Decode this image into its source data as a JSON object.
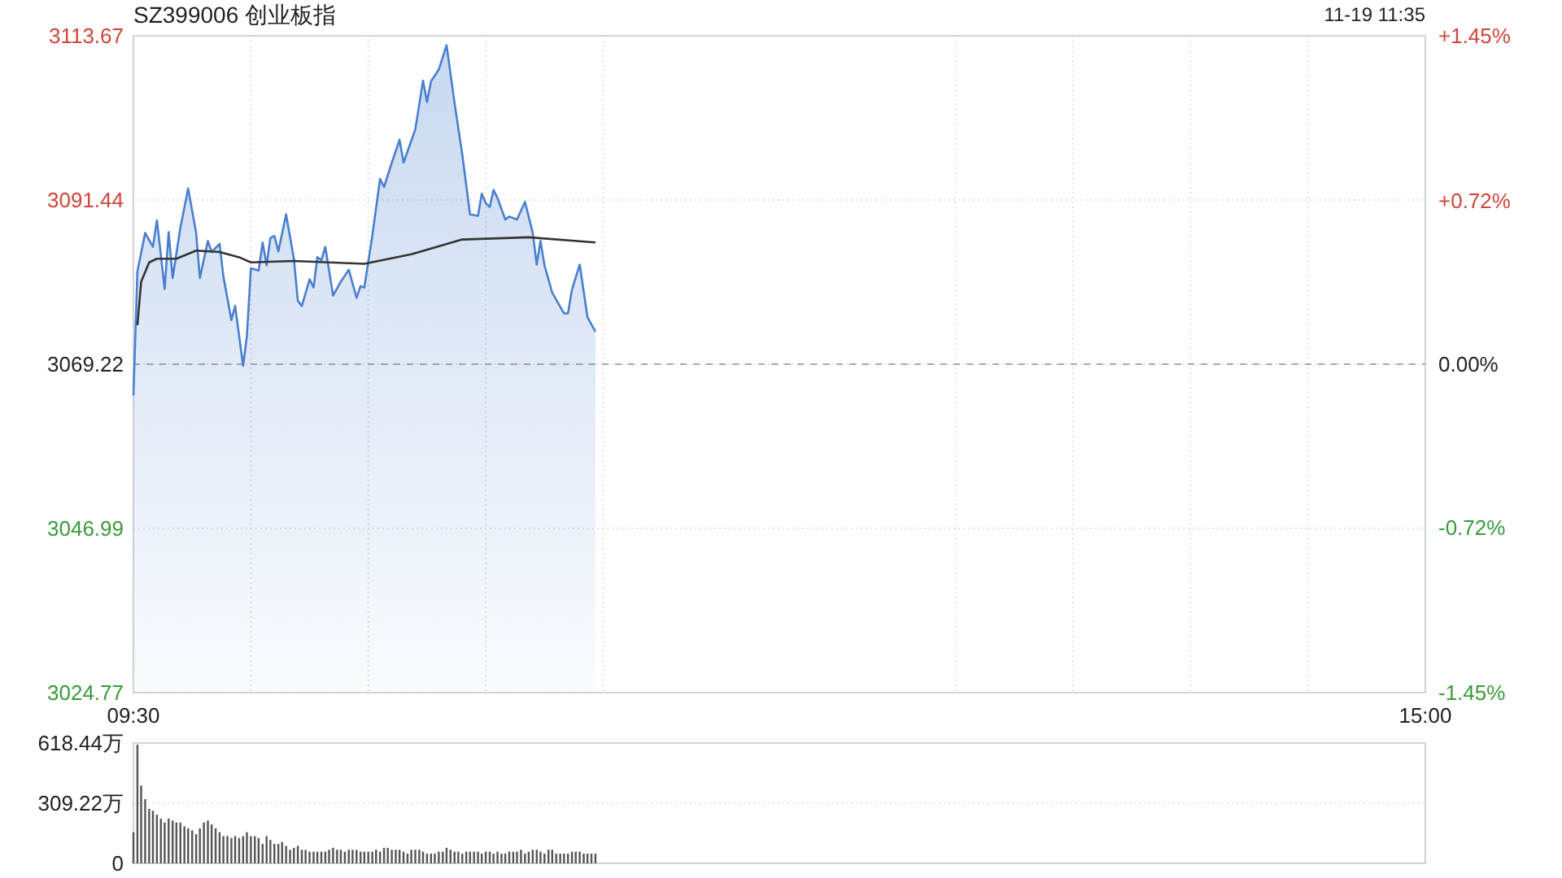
{
  "chart_data": [
    {
      "type": "area",
      "title": "SZ399006 创业板指",
      "annotations": [
        "11-19 11:35"
      ],
      "xlim": [
        9.5,
        15
      ],
      "xticks": [
        {
          "value": 9.5,
          "label": "09:30"
        },
        {
          "value": 10,
          "label": null
        },
        {
          "value": 10.5,
          "label": null
        },
        {
          "value": 11,
          "label": null
        },
        {
          "value": 11.5,
          "label": null
        },
        {
          "value": 13,
          "label": null
        },
        {
          "value": 13.5,
          "label": null
        },
        {
          "value": 14,
          "label": null
        },
        {
          "value": 14.5,
          "label": null
        },
        {
          "value": 15,
          "label": "15:00"
        }
      ],
      "ylim": [
        3024.77,
        3113.67
      ],
      "yticks": [
        3024.77,
        3046.99,
        3069.22,
        3091.44,
        3113.67
      ],
      "y2lim": [
        -1.45,
        1.45
      ],
      "y2ticks": [
        {
          "value": 1.45,
          "label": "+1.45%"
        },
        {
          "value": 0.72,
          "label": "+0.72%"
        },
        {
          "value": 0,
          "label": "0.00%"
        },
        {
          "value": -0.72,
          "label": "-0.72%"
        },
        {
          "value": -1.45,
          "label": "-1.45%"
        }
      ],
      "grid": true,
      "ref_lines": [
        {
          "axis": "y",
          "value": 3069.22,
          "line_style": "dashed",
          "color": "#aaaaaa"
        }
      ],
      "series": [
        {
          "type": "area",
          "color": "#4a7fcf",
          "x": [
            9.5,
            9.517,
            9.55,
            9.583,
            9.6,
            9.633,
            9.65,
            9.667,
            9.7,
            9.733,
            9.767,
            9.783,
            9.817,
            9.833,
            9.867,
            9.883,
            9.917,
            9.933,
            9.967,
            9.983,
            10,
            10.033,
            10.05,
            10.067,
            10.083,
            10.1,
            10.117,
            10.15,
            10.183,
            10.2,
            10.217,
            10.25,
            10.267,
            10.283,
            10.3,
            10.317,
            10.35,
            10.383,
            10.417,
            10.45,
            10.467,
            10.483,
            10.517,
            10.55,
            10.567,
            10.6,
            10.633,
            10.65,
            10.7,
            10.733,
            10.75,
            10.767,
            10.8,
            10.833,
            10.867,
            10.9,
            10.933,
            10.967,
            10.983,
            11,
            11.017,
            11.033,
            11.05,
            11.083,
            11.1,
            11.133,
            11.167,
            11.2,
            11.217,
            11.233,
            11.25,
            11.283,
            11.333,
            11.35,
            11.367,
            11.4,
            11.433,
            11.467
          ],
          "values": [
            3065.0,
            3081.8,
            3087.0,
            3085.1,
            3088.7,
            3079.4,
            3087.1,
            3080.9,
            3087.7,
            3093.0,
            3087.0,
            3080.9,
            3085.9,
            3084.4,
            3085.5,
            3081.1,
            3075.2,
            3077.1,
            3069.0,
            3073.0,
            3082.2,
            3081.9,
            3085.7,
            3082.6,
            3086.3,
            3086.6,
            3084.5,
            3089.5,
            3083.5,
            3077.8,
            3077.1,
            3080.7,
            3079.6,
            3083.7,
            3083.3,
            3085.1,
            3078.5,
            3080.4,
            3082.0,
            3078.2,
            3079.8,
            3079.6,
            3086.6,
            3094.3,
            3093.2,
            3096.5,
            3099.6,
            3096.5,
            3101.0,
            3107.6,
            3104.7,
            3107.5,
            3109.1,
            3112.4,
            3104.6,
            3097.6,
            3089.5,
            3089.3,
            3092.3,
            3091.0,
            3090.5,
            3092.8,
            3091.7,
            3088.8,
            3089.2,
            3088.8,
            3091.2,
            3087.0,
            3082.7,
            3085.9,
            3082.6,
            3078.9,
            3076.1,
            3076.1,
            3079.3,
            3082.7,
            3075.6,
            3073.6
          ]
        },
        {
          "type": "line",
          "color": "#333333",
          "x": [
            9.517,
            9.533,
            9.567,
            9.6,
            9.683,
            9.767,
            9.867,
            9.95,
            10,
            10.183,
            10.483,
            10.683,
            10.9,
            11.183,
            11.467
          ],
          "values": [
            3074.5,
            3080.4,
            3083.0,
            3083.5,
            3083.5,
            3084.6,
            3084.4,
            3083.7,
            3083.0,
            3083.2,
            3082.8,
            3084.1,
            3086.1,
            3086.4,
            3085.7
          ]
        }
      ]
    },
    {
      "type": "bar",
      "tick_labels": "y",
      "xlim": [
        9.5,
        15
      ],
      "ylim": [
        0,
        618.44
      ],
      "yticks": [
        0,
        {
          "value": 309.22,
          "label": "309.22万"
        },
        {
          "value": 618.44,
          "label": "618.44万"
        }
      ],
      "grid": "y",
      "series": [
        {
          "color": "#555555",
          "x": [
            9.5,
            9.517,
            9.533,
            9.55,
            9.567,
            9.583,
            9.6,
            9.617,
            9.633,
            9.65,
            9.667,
            9.683,
            9.7,
            9.717,
            9.733,
            9.75,
            9.767,
            9.783,
            9.8,
            9.817,
            9.833,
            9.85,
            9.867,
            9.883,
            9.9,
            9.917,
            9.933,
            9.95,
            9.967,
            9.983,
            10,
            10.017,
            10.033,
            10.05,
            10.067,
            10.083,
            10.1,
            10.117,
            10.133,
            10.15,
            10.167,
            10.183,
            10.2,
            10.217,
            10.233,
            10.25,
            10.267,
            10.283,
            10.3,
            10.317,
            10.333,
            10.35,
            10.367,
            10.383,
            10.4,
            10.417,
            10.433,
            10.45,
            10.467,
            10.483,
            10.5,
            10.517,
            10.533,
            10.55,
            10.567,
            10.583,
            10.6,
            10.617,
            10.633,
            10.65,
            10.667,
            10.683,
            10.7,
            10.717,
            10.733,
            10.75,
            10.767,
            10.783,
            10.8,
            10.817,
            10.833,
            10.85,
            10.867,
            10.883,
            10.9,
            10.917,
            10.933,
            10.95,
            10.967,
            10.983,
            11,
            11.017,
            11.033,
            11.05,
            11.067,
            11.083,
            11.1,
            11.117,
            11.133,
            11.15,
            11.167,
            11.183,
            11.2,
            11.217,
            11.233,
            11.25,
            11.267,
            11.283,
            11.3,
            11.317,
            11.333,
            11.35,
            11.367,
            11.383,
            11.4,
            11.417,
            11.433,
            11.45,
            11.467
          ],
          "values": [
            160,
            610,
            400,
            330,
            280,
            270,
            250,
            230,
            210,
            230,
            220,
            210,
            210,
            190,
            180,
            170,
            150,
            180,
            210,
            220,
            200,
            180,
            160,
            140,
            140,
            130,
            140,
            130,
            140,
            160,
            140,
            140,
            130,
            100,
            140,
            120,
            100,
            100,
            110,
            90,
            70,
            80,
            90,
            70,
            70,
            60,
            60,
            60,
            60,
            60,
            70,
            80,
            70,
            70,
            60,
            70,
            70,
            70,
            60,
            60,
            60,
            60,
            70,
            60,
            80,
            80,
            70,
            70,
            70,
            60,
            50,
            70,
            70,
            70,
            60,
            50,
            50,
            50,
            60,
            60,
            80,
            70,
            60,
            60,
            50,
            60,
            60,
            60,
            60,
            50,
            60,
            60,
            50,
            60,
            50,
            50,
            60,
            60,
            60,
            70,
            50,
            60,
            70,
            70,
            60,
            50,
            70,
            70,
            50,
            50,
            50,
            50,
            60,
            60,
            60,
            50,
            50,
            50,
            50
          ]
        }
      ]
    }
  ]
}
